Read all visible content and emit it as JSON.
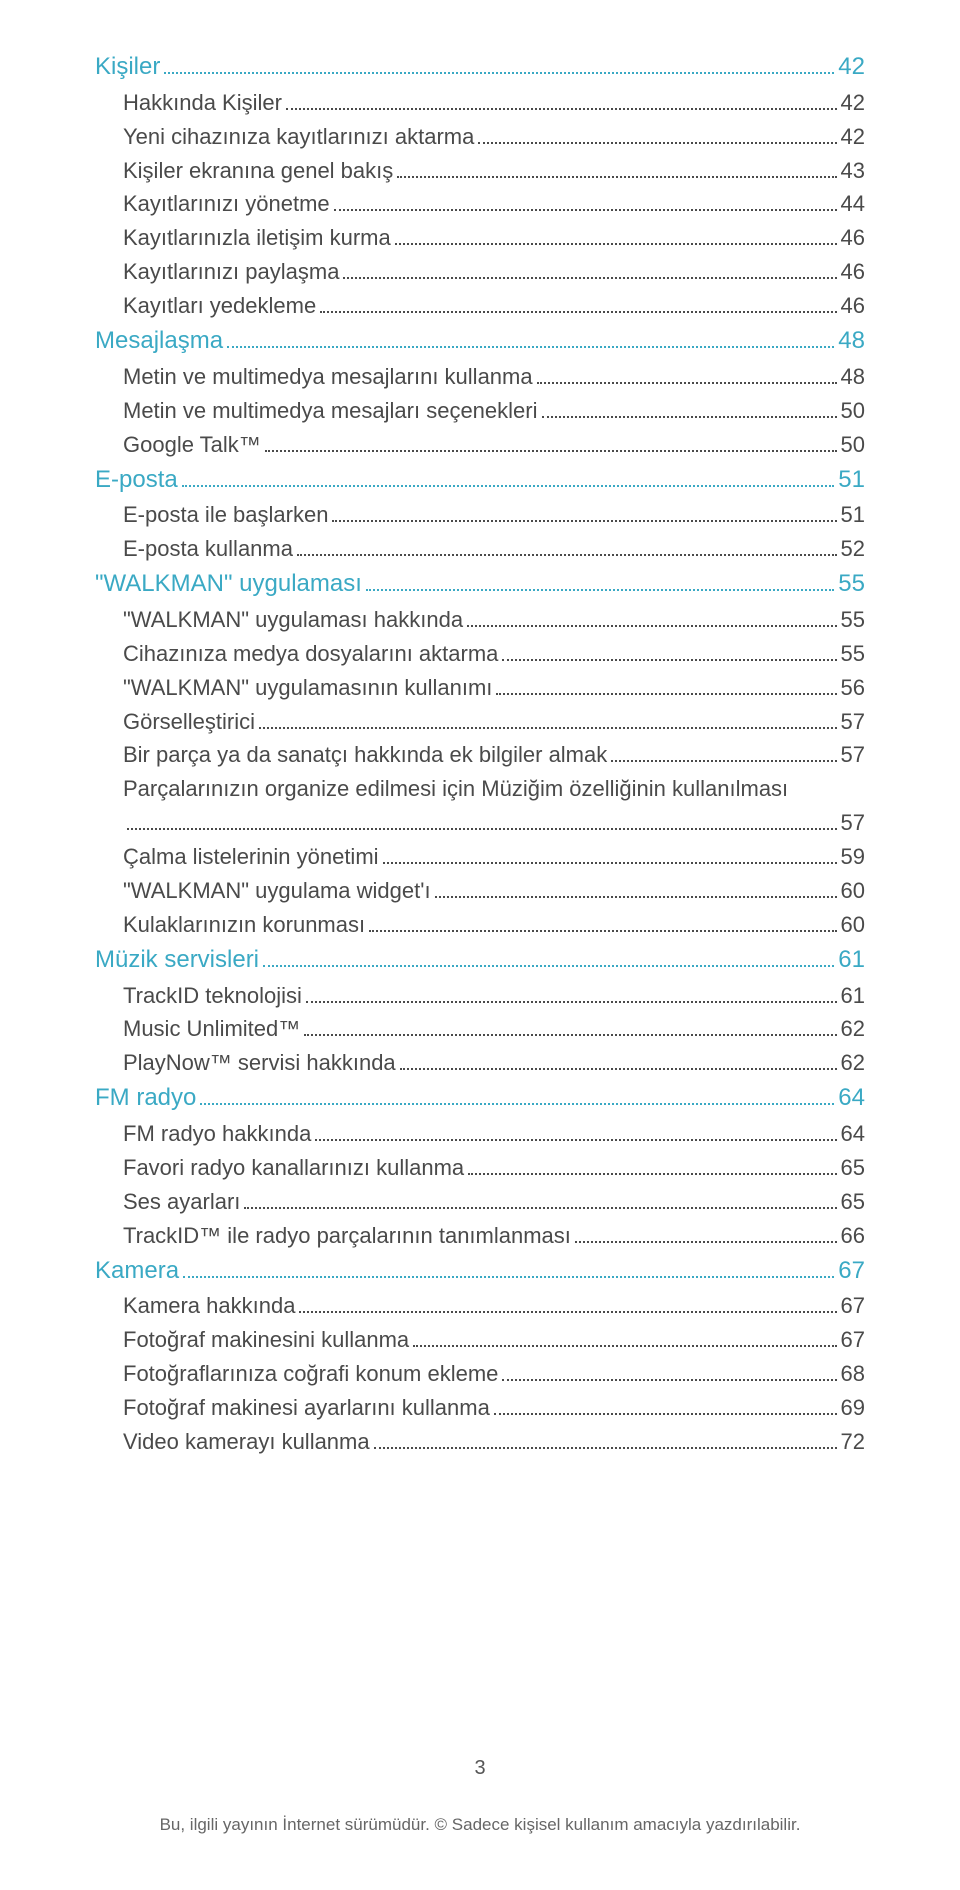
{
  "colors": {
    "section": "#3aa9c4",
    "item": "#4a4a4a",
    "background": "#ffffff",
    "footer": "#666666"
  },
  "typography": {
    "section_fontsize": 24,
    "item_fontsize": 22,
    "pagenum_fontsize": 20,
    "footer_fontsize": 17,
    "font_family": "Arial"
  },
  "page_number": "3",
  "footer_text": "Bu, ilgili yayının İnternet sürümüdür. © Sadece kişisel kullanım amacıyla yazdırılabilir.",
  "toc": [
    {
      "type": "section",
      "title": "Kişiler",
      "page": "42"
    },
    {
      "type": "item",
      "title": "Hakkında Kişiler",
      "page": "42"
    },
    {
      "type": "item",
      "title": "Yeni cihazınıza kayıtlarınızı aktarma",
      "page": "42"
    },
    {
      "type": "item",
      "title": "Kişiler ekranına genel bakış",
      "page": "43"
    },
    {
      "type": "item",
      "title": "Kayıtlarınızı yönetme",
      "page": "44"
    },
    {
      "type": "item",
      "title": "Kayıtlarınızla iletişim kurma",
      "page": "46"
    },
    {
      "type": "item",
      "title": "Kayıtlarınızı paylaşma",
      "page": "46"
    },
    {
      "type": "item",
      "title": "Kayıtları yedekleme",
      "page": "46"
    },
    {
      "type": "section",
      "title": "Mesajlaşma",
      "page": "48"
    },
    {
      "type": "item",
      "title": "Metin ve multimedya mesajlarını kullanma",
      "page": "48"
    },
    {
      "type": "item",
      "title": "Metin ve multimedya mesajları seçenekleri",
      "page": "50"
    },
    {
      "type": "item",
      "title": "Google Talk™",
      "page": "50"
    },
    {
      "type": "section",
      "title": "E-posta",
      "page": "51"
    },
    {
      "type": "item",
      "title": "E-posta ile başlarken",
      "page": "51"
    },
    {
      "type": "item",
      "title": "E-posta kullanma",
      "page": "52"
    },
    {
      "type": "section",
      "title": "\"WALKMAN\" uygulaması",
      "page": "55"
    },
    {
      "type": "item",
      "title": "\"WALKMAN\" uygulaması hakkında",
      "page": "55"
    },
    {
      "type": "item",
      "title": "Cihazınıza medya dosyalarını aktarma",
      "page": "55"
    },
    {
      "type": "item",
      "title": "\"WALKMAN\" uygulamasının kullanımı",
      "page": "56"
    },
    {
      "type": "item",
      "title": "Görselleştirici",
      "page": "57"
    },
    {
      "type": "item",
      "title": "Bir parça ya da sanatçı hakkında ek bilgiler almak",
      "page": "57"
    },
    {
      "type": "item",
      "title": "Parçalarınızın organize edilmesi için Müziğim özelliğinin kullanılması",
      "page": "",
      "nowrap_off": true
    },
    {
      "type": "cont",
      "title": "",
      "page": "57"
    },
    {
      "type": "item",
      "title": "Çalma listelerinin yönetimi",
      "page": "59"
    },
    {
      "type": "item",
      "title": "\"WALKMAN\" uygulama widget'ı",
      "page": "60"
    },
    {
      "type": "item",
      "title": "Kulaklarınızın korunması",
      "page": "60"
    },
    {
      "type": "section",
      "title": "Müzik servisleri",
      "page": "61"
    },
    {
      "type": "item",
      "title": "TrackID teknolojisi",
      "page": "61"
    },
    {
      "type": "item",
      "title": "Music Unlimited™",
      "page": "62"
    },
    {
      "type": "item",
      "title": "PlayNow™ servisi hakkında",
      "page": "62"
    },
    {
      "type": "section",
      "title": "FM radyo",
      "page": "64"
    },
    {
      "type": "item",
      "title": "FM radyo hakkında",
      "page": "64"
    },
    {
      "type": "item",
      "title": "Favori radyo kanallarınızı kullanma",
      "page": "65"
    },
    {
      "type": "item",
      "title": "Ses ayarları",
      "page": "65"
    },
    {
      "type": "item",
      "title": "TrackID™ ile radyo parçalarının tanımlanması",
      "page": "66"
    },
    {
      "type": "section",
      "title": "Kamera",
      "page": "67"
    },
    {
      "type": "item",
      "title": "Kamera hakkında",
      "page": "67"
    },
    {
      "type": "item",
      "title": "Fotoğraf makinesini kullanma",
      "page": "67"
    },
    {
      "type": "item",
      "title": "Fotoğraflarınıza coğrafi konum ekleme",
      "page": "68"
    },
    {
      "type": "item",
      "title": "Fotoğraf makinesi ayarlarını kullanma",
      "page": "69"
    },
    {
      "type": "item",
      "title": "Video kamerayı kullanma",
      "page": "72"
    }
  ]
}
